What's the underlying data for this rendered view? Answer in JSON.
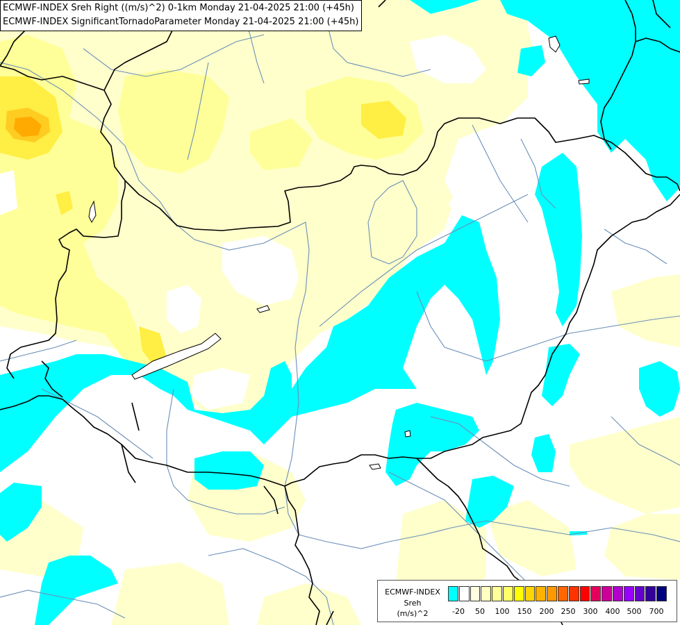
{
  "header": {
    "line1": "ECMWF-INDEX Sreh Right ((m/s)^2) 0-1km Monday 21-04-2025 21:00 (+45h)",
    "line2": "ECMWF-INDEX SignificantTornadoParameter Monday 21-04-2025 21:00 (+45h)"
  },
  "legend": {
    "line1": "ECMWF-INDEX",
    "line2": "Sreh",
    "line3": "(m/s)^2",
    "colors": [
      "#00ffff",
      "#ffffff",
      "#ffffe0",
      "#ffffc0",
      "#ffff99",
      "#ffff66",
      "#ffff00",
      "#ffd700",
      "#ffb300",
      "#ff9900",
      "#ff6600",
      "#ff3300",
      "#ff0000",
      "#e6005c",
      "#cc0099",
      "#b300cc",
      "#9900ff",
      "#6600cc",
      "#330099",
      "#000080"
    ],
    "tick_labels": [
      "-20",
      "50",
      "100",
      "150",
      "200",
      "250",
      "300",
      "400",
      "500",
      "700"
    ]
  },
  "map_colors": {
    "cyan": "#00ffff",
    "pale_yellow": "#ffffcc",
    "light_yellow": "#ffff99",
    "yellow": "#ffee44",
    "orange": "#ffaa00",
    "border": "#000000",
    "river": "#6a8fb8"
  }
}
